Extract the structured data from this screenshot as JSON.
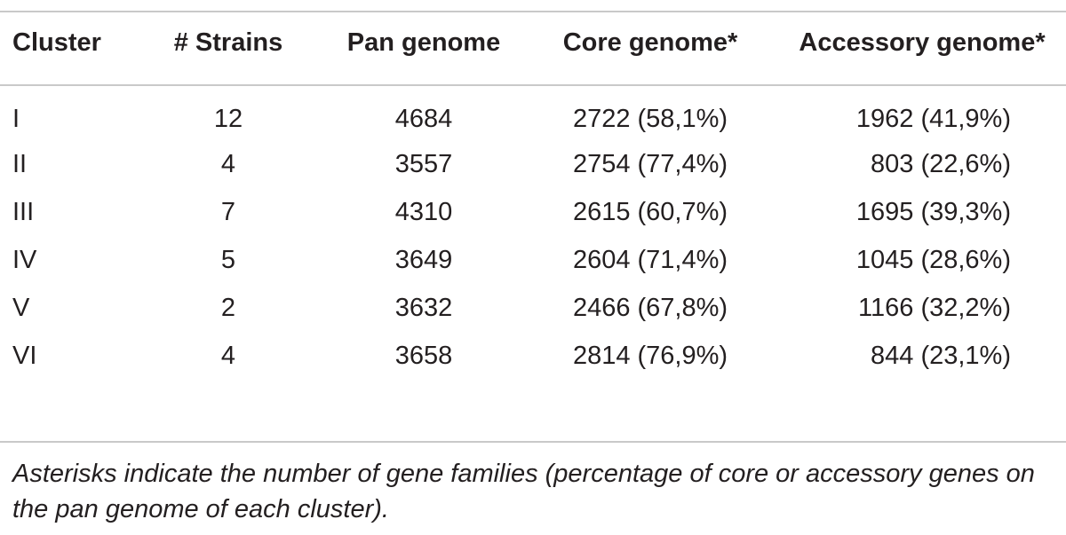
{
  "table": {
    "headers": [
      "Cluster",
      "# Strains",
      "Pan genome",
      "Core genome*",
      "Accessory genome*"
    ],
    "rows": [
      [
        "I",
        "12",
        "4684",
        "2722 (58,1%)",
        "1962 (41,9%)"
      ],
      [
        "II",
        "4",
        "3557",
        "2754 (77,4%)",
        "803 (22,6%)"
      ],
      [
        "III",
        "7",
        "4310",
        "2615 (60,7%)",
        "1695 (39,3%)"
      ],
      [
        "IV",
        "5",
        "3649",
        "2604 (71,4%)",
        "1045 (28,6%)"
      ],
      [
        "V",
        "2",
        "3632",
        "2466 (67,8%)",
        "1166 (32,2%)"
      ],
      [
        "VI",
        "4",
        "3658",
        "2814 (76,9%)",
        "844 (23,1%)"
      ]
    ]
  },
  "footnote": "Asterisks indicate the number of gene families (percentage of core or accessory genes on the pan genome of each cluster)."
}
